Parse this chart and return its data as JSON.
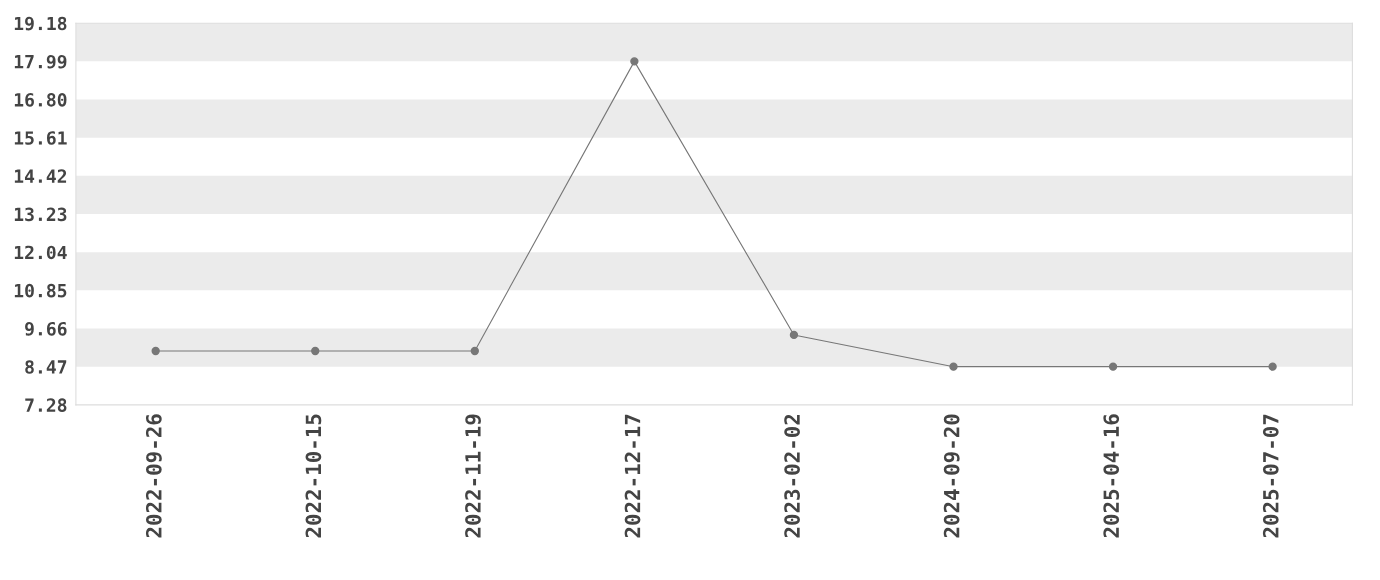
{
  "chart_data": {
    "type": "line",
    "categories": [
      "2022-09-26",
      "2022-10-15",
      "2022-11-19",
      "2022-12-17",
      "2023-02-02",
      "2024-09-20",
      "2025-04-16",
      "2025-07-07"
    ],
    "series": [
      {
        "color": "#777777",
        "values": [
          8.96,
          8.96,
          8.96,
          17.99,
          9.46,
          8.47,
          8.47,
          8.47
        ]
      }
    ],
    "ylim": [
      7.28,
      19.18
    ],
    "yticks": [
      7.28,
      8.47,
      9.66,
      10.85,
      12.04,
      13.23,
      14.42,
      15.61,
      {
        "value": 16.8,
        "label": "16.80"
      },
      17.99,
      19.18
    ],
    "bands": [
      {
        "axis": "y",
        "from": 8.47,
        "to": 9.66,
        "color": "#ebebeb"
      },
      {
        "axis": "y",
        "from": 10.85,
        "to": 12.04,
        "color": "#ebebeb"
      },
      {
        "axis": "y",
        "from": 13.23,
        "to": 14.42,
        "color": "#ebebeb"
      },
      {
        "axis": "y",
        "from": 15.61,
        "to": 16.8,
        "color": "#ebebeb"
      },
      {
        "axis": "y",
        "from": 17.99,
        "to": 19.18,
        "color": "#ebebeb"
      }
    ],
    "marker": "circle",
    "line_style": "solid",
    "grid": false,
    "legend": false
  }
}
